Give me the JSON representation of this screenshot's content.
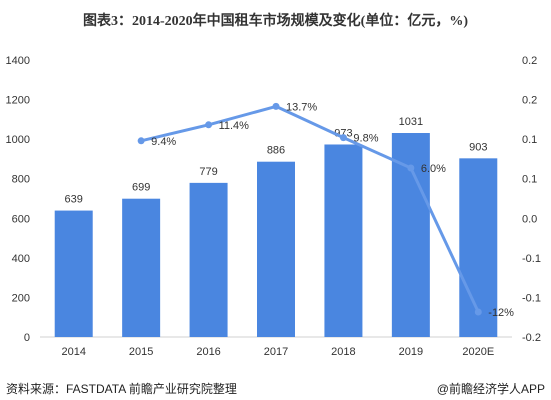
{
  "title": "图表3：2014-2020年中国租车市场规模及变化(单位：亿元，%)",
  "footer": {
    "source": "资料来源：FASTDATA 前瞻产业研究院整理",
    "brand": "@前瞻经济学人APP"
  },
  "colors": {
    "bar": "#4a86e0",
    "line": "#6699e8",
    "text": "#333333",
    "axis": "#d0d0d0"
  },
  "chart_data": {
    "type": "bar",
    "categories": [
      "2014",
      "2015",
      "2016",
      "2017",
      "2018",
      "2019",
      "2020E"
    ],
    "series": [
      {
        "values": [
          639,
          699,
          779,
          886,
          973,
          1031,
          903
        ],
        "labels": [
          "639",
          "699",
          "779",
          "886",
          "973",
          "1031",
          "903"
        ],
        "axis": "left"
      },
      {
        "type": "line",
        "values": [
          null,
          9.4,
          11.4,
          13.7,
          9.8,
          6.0,
          -12
        ],
        "labels": [
          "",
          "9.4%",
          "11.4%",
          "13.7%",
          "9.8%",
          "6.0%",
          "-12%"
        ],
        "axis": "right"
      }
    ],
    "left_axis": {
      "ticks": [
        0,
        200,
        400,
        600,
        800,
        1000,
        1200,
        1400
      ],
      "ylim": [
        0,
        1400
      ]
    },
    "right_axis": {
      "ticks": [
        "-0.2",
        "-0.1",
        "-0.1",
        "0.0",
        "0.1",
        "0.1",
        "0.2",
        "0.2"
      ]
    }
  }
}
